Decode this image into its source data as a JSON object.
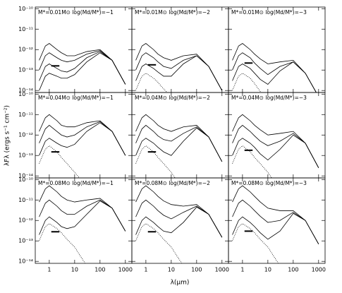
{
  "ylabel": "λFλ (ergs s⁻¹ cm⁻²)",
  "xlabel": "λ(μm)",
  "xlog": true,
  "ylog": true,
  "color": "#000000",
  "xlim": [
    0.28,
    1800
  ],
  "ylim": [
    8e-15,
    1.2e-10
  ],
  "xticks": [
    1,
    10,
    100,
    1000
  ],
  "yticks": [
    {
      "value": 1e-10,
      "label": "10⁻¹⁰"
    },
    {
      "value": 1e-11,
      "label": "10⁻¹¹"
    },
    {
      "value": 1e-12,
      "label": "10⁻¹²"
    },
    {
      "value": 1e-13,
      "label": "10⁻¹³"
    },
    {
      "value": 1e-14,
      "label": "10⁻¹⁴"
    }
  ],
  "x": [
    0.4,
    0.7,
    1,
    2,
    3,
    5,
    10,
    30,
    100,
    300,
    1000
  ],
  "chart_data": [
    {
      "type": "line",
      "title": "M*=0.01M⊙   log(Md/M*)=−1",
      "marker": {
        "x": [
          1.2,
          2.5
        ],
        "y": 1.6e-13
      },
      "series": [
        {
          "style": "solid",
          "values": [
            3e-13,
            1.5e-12,
            2e-12,
            1e-12,
            7e-13,
            5e-13,
            5e-13,
            8e-13,
            1e-12,
            3e-13,
            2e-14
          ]
        },
        {
          "style": "solid",
          "values": [
            1e-13,
            5e-13,
            7e-13,
            4e-13,
            3e-13,
            2.5e-13,
            3e-13,
            6e-13,
            9e-13,
            3e-13,
            2e-14
          ]
        },
        {
          "style": "solid",
          "values": [
            3e-14,
            1.5e-13,
            2e-13,
            1.2e-13,
            9e-14,
            8e-14,
            1.2e-13,
            4e-13,
            8e-13,
            3e-13,
            2e-14
          ]
        },
        {
          "style": "solid",
          "values": [
            1e-14,
            5e-14,
            7e-14,
            5e-14,
            4e-14,
            4e-14,
            6e-14,
            2.5e-13,
            7e-13,
            3e-13,
            2e-14
          ]
        }
      ]
    },
    {
      "type": "line",
      "title": "M*=0.01M⊙   log(Md/M*)=−2",
      "marker": {
        "x": [
          1.2,
          2.5
        ],
        "y": 1.8e-13
      },
      "series": [
        {
          "style": "solid",
          "values": [
            3e-13,
            1.5e-12,
            2e-12,
            1e-12,
            6e-13,
            4e-13,
            3e-13,
            5e-13,
            6e-13,
            1.5e-13,
            1e-14
          ]
        },
        {
          "style": "solid",
          "values": [
            1e-13,
            5e-13,
            7e-13,
            4e-13,
            2.5e-13,
            1.5e-13,
            1.2e-13,
            3e-13,
            5e-13,
            1.5e-13,
            1e-14
          ]
        },
        {
          "style": "solid",
          "values": [
            3e-14,
            1.5e-13,
            2e-13,
            1.2e-13,
            8e-14,
            5e-14,
            5e-14,
            2e-13,
            5e-13,
            1.5e-13,
            1e-14
          ]
        },
        {
          "style": "dotted",
          "values": [
            1e-14,
            5e-14,
            7e-14,
            4e-14,
            2.5e-14,
            1.2e-14,
            5e-15,
            null,
            null,
            null,
            null
          ]
        }
      ]
    },
    {
      "type": "line",
      "title": "M*=0.01M⊙   log(Md/M*)=−3",
      "marker": {
        "x": [
          1.2,
          2.5
        ],
        "y": 2.2e-13
      },
      "series": [
        {
          "style": "solid",
          "values": [
            3e-13,
            1.5e-12,
            2e-12,
            1e-12,
            6e-13,
            3.5e-13,
            2e-13,
            2.5e-13,
            3e-13,
            7e-14,
            5e-15
          ]
        },
        {
          "style": "solid",
          "values": [
            1e-13,
            5e-13,
            7e-13,
            4e-13,
            2.2e-13,
            1.2e-13,
            6e-14,
            1.5e-13,
            2.5e-13,
            7e-14,
            5e-15
          ]
        },
        {
          "style": "solid",
          "values": [
            3e-14,
            1.5e-13,
            2e-13,
            1.2e-13,
            7e-14,
            3.5e-14,
            2e-14,
            9e-14,
            2.5e-13,
            7e-14,
            5e-15
          ]
        },
        {
          "style": "dotted",
          "values": [
            1e-14,
            5e-14,
            7e-14,
            4e-14,
            2.2e-14,
            9e-15,
            3e-15,
            null,
            null,
            null,
            null
          ]
        }
      ]
    },
    {
      "type": "line",
      "title": "M*=0.04M⊙   log(Md/M*)=−1",
      "marker": {
        "x": [
          1.2,
          2.5
        ],
        "y": 1.5e-13
      },
      "series": [
        {
          "style": "solid",
          "values": [
            1.5e-12,
            7e-12,
            1e-11,
            5e-12,
            3e-12,
            2.5e-12,
            2.5e-12,
            4e-12,
            5e-12,
            1.5e-12,
            1e-13
          ]
        },
        {
          "style": "solid",
          "values": [
            4e-13,
            2e-12,
            3e-12,
            1.5e-12,
            1e-12,
            8e-13,
            1e-12,
            2.5e-12,
            4.5e-12,
            1.5e-12,
            1e-13
          ]
        },
        {
          "style": "solid",
          "values": [
            1e-13,
            5e-13,
            7e-13,
            4e-13,
            3e-13,
            2.5e-13,
            3.5e-13,
            1.5e-12,
            4e-12,
            1.5e-12,
            1e-13
          ]
        },
        {
          "style": "dotted",
          "values": [
            4e-14,
            2e-13,
            3e-13,
            1.5e-13,
            8e-14,
            4e-14,
            1.5e-14,
            3e-15,
            null,
            null,
            null
          ]
        }
      ]
    },
    {
      "type": "line",
      "title": "M*=0.04M⊙   log(Md/M*)=−2",
      "marker": {
        "x": [
          1.2,
          2.5
        ],
        "y": 1.5e-13
      },
      "series": [
        {
          "style": "solid",
          "values": [
            1.5e-12,
            7e-12,
            1e-11,
            5e-12,
            3e-12,
            2e-12,
            1.5e-12,
            2.5e-12,
            3e-12,
            8e-13,
            5e-14
          ]
        },
        {
          "style": "solid",
          "values": [
            4e-13,
            2e-12,
            3e-12,
            1.5e-12,
            9e-13,
            6e-13,
            5e-13,
            1.2e-12,
            2.5e-12,
            8e-13,
            5e-14
          ]
        },
        {
          "style": "solid",
          "values": [
            1e-13,
            5e-13,
            7e-13,
            4e-13,
            2.5e-13,
            1.5e-13,
            1e-13,
            5e-13,
            2.2e-12,
            8e-13,
            5e-14
          ]
        },
        {
          "style": "dotted",
          "values": [
            4e-14,
            2e-13,
            3e-13,
            1.5e-13,
            8e-14,
            4e-14,
            1.5e-14,
            2e-15,
            null,
            null,
            null
          ]
        }
      ]
    },
    {
      "type": "line",
      "title": "M*=0.04M⊙   log(Md/M*)=−3",
      "marker": {
        "x": [
          1.2,
          2.5
        ],
        "y": 1.8e-13
      },
      "series": [
        {
          "style": "solid",
          "values": [
            1.5e-12,
            7e-12,
            1e-11,
            5e-12,
            3e-12,
            1.8e-12,
            1e-12,
            1.2e-12,
            1.5e-12,
            4e-13,
            2.5e-14
          ]
        },
        {
          "style": "solid",
          "values": [
            4e-13,
            2e-12,
            3e-12,
            1.5e-12,
            9e-13,
            5e-13,
            3e-13,
            5e-13,
            1.2e-12,
            4e-13,
            2.5e-14
          ]
        },
        {
          "style": "solid",
          "values": [
            1e-13,
            5e-13,
            7e-13,
            4e-13,
            2.5e-13,
            1.2e-13,
            6e-14,
            2e-13,
            1e-12,
            4e-13,
            2.5e-14
          ]
        },
        {
          "style": "dotted",
          "values": [
            4e-14,
            2e-13,
            3e-13,
            1.5e-13,
            8e-14,
            4e-14,
            1.5e-14,
            2e-15,
            null,
            null,
            null
          ]
        }
      ]
    },
    {
      "type": "line",
      "title": "M*=0.08M⊙   log(Md/M*)=−1",
      "marker": {
        "x": [
          1.2,
          2.5
        ],
        "y": 2.8e-13
      },
      "series": [
        {
          "style": "solid",
          "values": [
            8e-12,
            3.5e-11,
            5e-11,
            2.5e-11,
            1.5e-11,
            1e-11,
            8e-12,
            1e-11,
            1.2e-11,
            4e-12,
            3e-13
          ]
        },
        {
          "style": "solid",
          "values": [
            1.5e-12,
            7e-12,
            1e-11,
            5e-12,
            3e-12,
            2e-12,
            2e-12,
            5e-12,
            1e-11,
            4e-12,
            3e-13
          ]
        },
        {
          "style": "solid",
          "values": [
            2e-13,
            1e-12,
            1.5e-12,
            8e-13,
            5e-13,
            4e-13,
            5e-13,
            2e-12,
            9e-12,
            4e-12,
            3e-13
          ]
        },
        {
          "style": "dotted",
          "values": [
            1e-13,
            5e-13,
            7e-13,
            4e-13,
            2.5e-13,
            1.2e-13,
            5e-14,
            6e-15,
            null,
            null,
            null
          ]
        }
      ]
    },
    {
      "type": "line",
      "title": "M*=0.08M⊙   log(Md/M*)=−2",
      "marker": {
        "x": [
          1.2,
          2.5
        ],
        "y": 2.8e-13
      },
      "series": [
        {
          "style": "solid",
          "values": [
            8e-12,
            3.5e-11,
            5e-11,
            2.5e-11,
            1.5e-11,
            9e-12,
            6e-12,
            5e-12,
            6e-12,
            2e-12,
            1.5e-13
          ]
        },
        {
          "style": "solid",
          "values": [
            1.5e-12,
            7e-12,
            1e-11,
            5e-12,
            3e-12,
            1.8e-12,
            1.2e-12,
            2.5e-12,
            5e-12,
            2e-12,
            1.5e-13
          ]
        },
        {
          "style": "solid",
          "values": [
            2e-13,
            1e-12,
            1.5e-12,
            8e-13,
            5e-13,
            3e-13,
            2.5e-13,
            8e-13,
            4.5e-12,
            2e-12,
            1.5e-13
          ]
        },
        {
          "style": "dotted",
          "values": [
            1e-13,
            5e-13,
            7e-13,
            4e-13,
            2.5e-13,
            1.2e-13,
            5e-14,
            6e-15,
            null,
            null,
            null
          ]
        }
      ]
    },
    {
      "type": "line",
      "title": "M*=0.08M⊙   log(Md/M*)=−3",
      "marker": {
        "x": [
          1.2,
          2.5
        ],
        "y": 3e-13
      },
      "series": [
        {
          "style": "solid",
          "values": [
            8e-12,
            3.5e-11,
            5e-11,
            2.5e-11,
            1.5e-11,
            8e-12,
            4e-12,
            3e-12,
            3e-12,
            1e-12,
            7e-14
          ]
        },
        {
          "style": "solid",
          "values": [
            1.5e-12,
            7e-12,
            1e-11,
            5e-12,
            3e-12,
            1.6e-12,
            8e-13,
            1e-12,
            2.5e-12,
            1e-12,
            7e-14
          ]
        },
        {
          "style": "solid",
          "values": [
            2e-13,
            1e-12,
            1.5e-12,
            8e-13,
            5e-13,
            2.5e-13,
            1.2e-13,
            3e-13,
            2.2e-12,
            1e-12,
            7e-14
          ]
        },
        {
          "style": "dotted",
          "values": [
            1e-13,
            5e-13,
            7e-13,
            4e-13,
            2.5e-13,
            1.2e-13,
            5e-14,
            6e-15,
            null,
            null,
            null
          ]
        }
      ]
    }
  ]
}
